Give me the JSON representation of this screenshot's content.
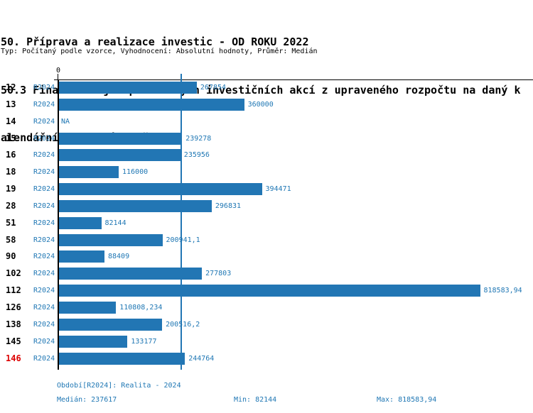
{
  "header": {
    "title_line1": "50. Příprava a realizace investic - OD ROKU 2022",
    "title_line2": "50.3 Finanční objem plánovaných investičních akcí z upraveného rozpočtu na daný k",
    "title_line3": "alendářní rok v tis. Kč",
    "subtitle": "Typ: Počítaný podle vzorce, Vyhodnocení: Absolutní hodnoty, Průměr: Medián"
  },
  "chart_data": {
    "type": "bar",
    "orientation": "horizontal",
    "axis_zero_label": "0",
    "series_name": "R2024",
    "median_value": 237617,
    "axis_max_estimate": 922000,
    "bar_color": "#2276b4",
    "text_color": "#1f77b4",
    "highlight_color": "#dd0000",
    "highlight_categories": [
      "146"
    ],
    "grid": "median-line-only",
    "categories": [
      "12",
      "13",
      "14",
      "15",
      "16",
      "18",
      "19",
      "28",
      "51",
      "58",
      "90",
      "102",
      "112",
      "126",
      "138",
      "145",
      "146"
    ],
    "rows": [
      {
        "category": "12",
        "period": "R2024",
        "value": 267854,
        "label": "267854"
      },
      {
        "category": "13",
        "period": "R2024",
        "value": 360000,
        "label": "360000"
      },
      {
        "category": "14",
        "period": "R2024",
        "value": null,
        "label": "NA"
      },
      {
        "category": "15",
        "period": "R2024",
        "value": 239278,
        "label": "239278"
      },
      {
        "category": "16",
        "period": "R2024",
        "value": 235956,
        "label": "235956"
      },
      {
        "category": "18",
        "period": "R2024",
        "value": 116000,
        "label": "116000"
      },
      {
        "category": "19",
        "period": "R2024",
        "value": 394471,
        "label": "394471"
      },
      {
        "category": "28",
        "period": "R2024",
        "value": 296831,
        "label": "296831"
      },
      {
        "category": "51",
        "period": "R2024",
        "value": 82144,
        "label": "82144"
      },
      {
        "category": "58",
        "period": "R2024",
        "value": 200941.1,
        "label": "200941,1"
      },
      {
        "category": "90",
        "period": "R2024",
        "value": 88409,
        "label": "88409"
      },
      {
        "category": "102",
        "period": "R2024",
        "value": 277803,
        "label": "277803"
      },
      {
        "category": "112",
        "period": "R2024",
        "value": 818583.94,
        "label": "818583,94"
      },
      {
        "category": "126",
        "period": "R2024",
        "value": 110808.234,
        "label": "110808,234"
      },
      {
        "category": "138",
        "period": "R2024",
        "value": 200516.2,
        "label": "200516,2"
      },
      {
        "category": "145",
        "period": "R2024",
        "value": 133177,
        "label": "133177"
      },
      {
        "category": "146",
        "period": "R2024",
        "value": 244764,
        "label": "244764"
      }
    ]
  },
  "footer": {
    "period": "Období[R2024]: Realita - 2024",
    "median": "Medián: 237617",
    "min": "Min: 82144",
    "max": "Max: 818583,94"
  }
}
